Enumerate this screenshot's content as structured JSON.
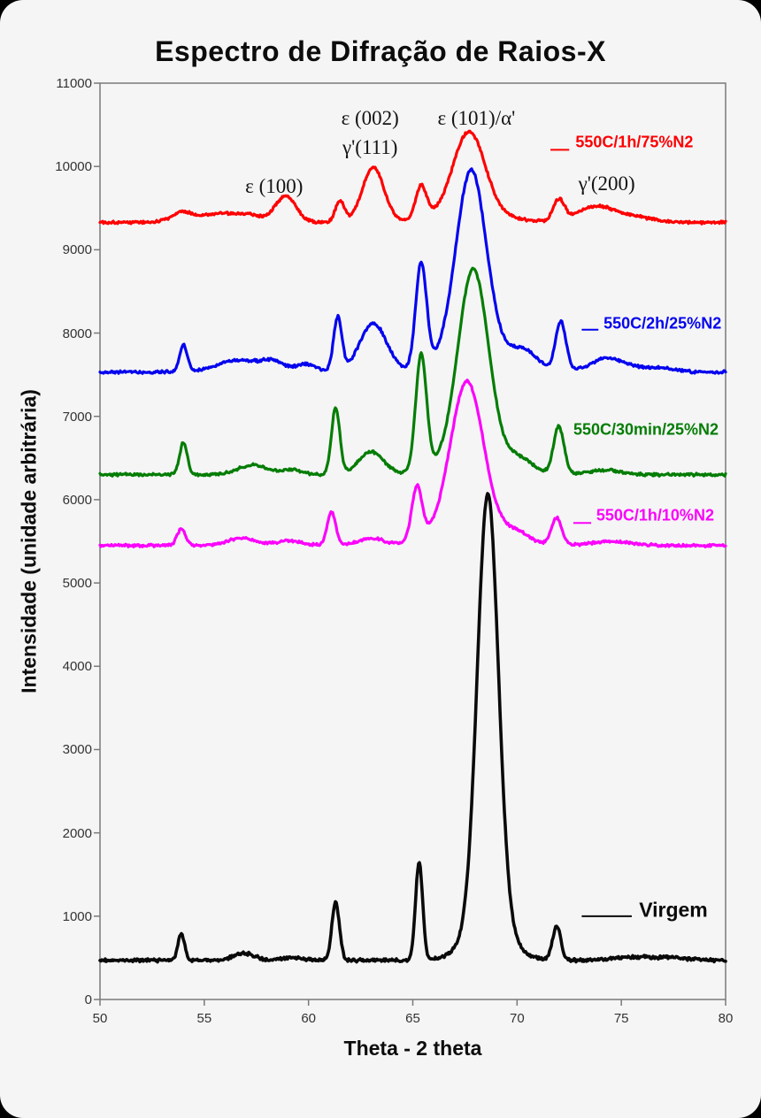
{
  "chart_data": {
    "type": "line",
    "title": "Espectro de Difração de Raios-X",
    "xlabel": "Theta - 2 theta",
    "ylabel": "Intensidade (unidade arbitrária)",
    "xlim": [
      50,
      80
    ],
    "ylim": [
      0,
      11000
    ],
    "x_ticks": [
      50,
      55,
      60,
      65,
      70,
      75,
      80
    ],
    "y_ticks": [
      0,
      1000,
      2000,
      3000,
      4000,
      5000,
      6000,
      7000,
      8000,
      9000,
      10000,
      11000
    ],
    "grid": false,
    "axis_color": "#7a7a7a",
    "legend_position": "inline-right",
    "annotations": [
      {
        "text": "ε (100)",
        "x": 58.35,
        "y": 9760
      },
      {
        "text": "ε (002)",
        "x": 62.95,
        "y": 10580
      },
      {
        "text": "γ'(111)",
        "x": 62.95,
        "y": 10230
      },
      {
        "text": "ε (101)/α'",
        "x": 68.05,
        "y": 10580
      },
      {
        "text": "γ'(200)",
        "x": 74.3,
        "y": 9790
      }
    ],
    "series": [
      {
        "name": "550C/1h/75%N2",
        "color": "#fe0000",
        "baseline": 9330,
        "noise": 21,
        "seed": 101,
        "legend": {
          "label_x": 72.8,
          "label_y": 10290,
          "dash": [
            71.6,
            72.5
          ],
          "dash_y": 10200,
          "large": false
        },
        "peaks": [
          [
            53.9,
            110,
            0.5
          ],
          [
            55.7,
            105,
            0.9
          ],
          [
            57.2,
            75,
            0.55
          ],
          [
            58.9,
            315,
            0.5
          ],
          [
            61.5,
            255,
            0.22
          ],
          [
            63.1,
            655,
            0.52
          ],
          [
            65.4,
            395,
            0.26
          ],
          [
            67.7,
            950,
            0.75
          ],
          [
            67.7,
            140,
            1.5
          ],
          [
            72.0,
            255,
            0.27
          ],
          [
            73.8,
            195,
            0.9
          ],
          [
            75.8,
            55,
            0.8
          ]
        ]
      },
      {
        "name": "550C/2h/25%N2",
        "color": "#0404ee",
        "baseline": 7530,
        "noise": 21,
        "seed": 202,
        "legend": {
          "label_x": 74.15,
          "label_y": 8110,
          "dash": [
            73.1,
            73.9
          ],
          "dash_y": 8040,
          "large": false
        },
        "peaks": [
          [
            54.0,
            325,
            0.18
          ],
          [
            56.6,
            145,
            1.0
          ],
          [
            58.3,
            115,
            0.55
          ],
          [
            59.9,
            95,
            0.5
          ],
          [
            61.4,
            645,
            0.2
          ],
          [
            63.1,
            585,
            0.65
          ],
          [
            65.4,
            1255,
            0.26
          ],
          [
            67.8,
            2180,
            0.72
          ],
          [
            67.8,
            250,
            1.4
          ],
          [
            70.3,
            230,
            0.7
          ],
          [
            72.1,
            600,
            0.25
          ],
          [
            74.3,
            165,
            0.8
          ],
          [
            76.5,
            55,
            1.0
          ]
        ]
      },
      {
        "name": "550C/30min/25%N2",
        "color": "#047d04",
        "baseline": 6300,
        "noise": 19,
        "seed": 303,
        "legend": {
          "label_x": 72.7,
          "label_y": 6840,
          "dash": null,
          "dash_y": null,
          "large": false
        },
        "peaks": [
          [
            54.0,
            385,
            0.18
          ],
          [
            57.3,
            115,
            0.7
          ],
          [
            59.2,
            55,
            0.5
          ],
          [
            61.3,
            795,
            0.2
          ],
          [
            63.0,
            275,
            0.6
          ],
          [
            65.4,
            1395,
            0.26
          ],
          [
            67.9,
            2215,
            0.72
          ],
          [
            67.9,
            255,
            1.4
          ],
          [
            70.2,
            140,
            0.6
          ],
          [
            72.0,
            575,
            0.25
          ],
          [
            74.2,
            55,
            0.8
          ]
        ]
      },
      {
        "name": "550C/1h/10%N2",
        "color": "#fb02fb",
        "baseline": 5450,
        "noise": 19,
        "seed": 404,
        "legend": {
          "label_x": 73.8,
          "label_y": 5810,
          "dash": [
            72.7,
            73.55
          ],
          "dash_y": 5720,
          "large": false
        },
        "peaks": [
          [
            53.9,
            195,
            0.2
          ],
          [
            56.8,
            85,
            0.7
          ],
          [
            59.1,
            55,
            0.6
          ],
          [
            61.1,
            395,
            0.21
          ],
          [
            63.0,
            85,
            0.6
          ],
          [
            65.2,
            645,
            0.25
          ],
          [
            67.6,
            1750,
            0.78
          ],
          [
            67.6,
            220,
            1.5
          ],
          [
            70.0,
            115,
            0.6
          ],
          [
            71.9,
            325,
            0.25
          ],
          [
            74.5,
            45,
            1.0
          ]
        ]
      },
      {
        "name": "Virgem",
        "color": "#0a0a0a",
        "baseline": 470,
        "noise": 23,
        "seed": 505,
        "legend": {
          "label_x": 75.85,
          "label_y": 1070,
          "dash": [
            73.1,
            75.5
          ],
          "dash_y": 1000,
          "large": true
        },
        "peaks": [
          [
            53.9,
            325,
            0.16
          ],
          [
            56.9,
            85,
            0.5
          ],
          [
            59.2,
            30,
            0.5
          ],
          [
            61.3,
            695,
            0.18
          ],
          [
            65.3,
            1175,
            0.17
          ],
          [
            68.6,
            5150,
            0.5
          ],
          [
            68.6,
            455,
            1.0
          ],
          [
            71.9,
            405,
            0.2
          ],
          [
            75.3,
            30,
            0.8
          ],
          [
            77.2,
            35,
            1.0
          ]
        ]
      }
    ]
  }
}
